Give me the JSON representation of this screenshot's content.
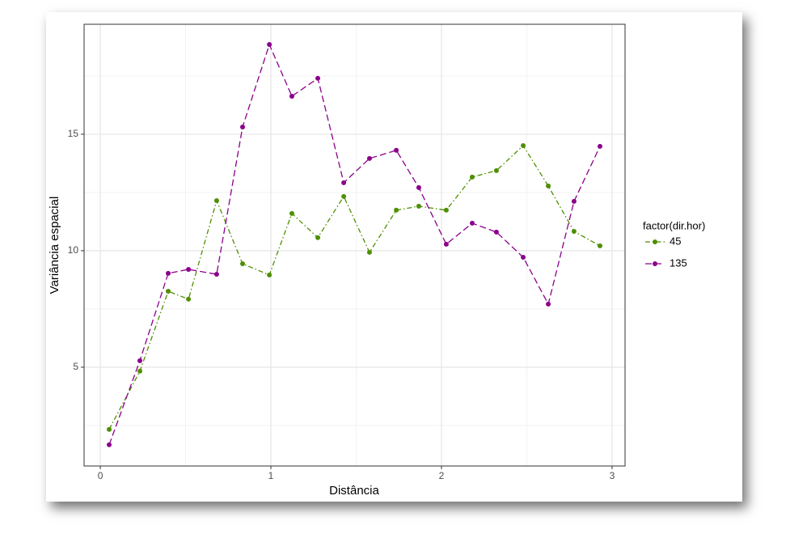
{
  "chart_data": {
    "type": "line",
    "xlabel": "Distância",
    "ylabel": "Variância espacial",
    "legend_title": "factor(dir.hor)",
    "x": [
      0.052,
      0.232,
      0.398,
      0.517,
      0.682,
      0.834,
      0.991,
      1.123,
      1.275,
      1.427,
      1.578,
      1.735,
      1.867,
      2.028,
      2.18,
      2.322,
      2.479,
      2.626,
      2.777,
      2.929
    ],
    "series": [
      {
        "name": "45",
        "color": "#4f8f00",
        "values": [
          2.33,
          4.83,
          8.26,
          7.92,
          12.15,
          9.44,
          8.96,
          11.6,
          10.56,
          12.33,
          9.93,
          11.74,
          11.91,
          11.74,
          13.16,
          13.44,
          14.51,
          12.78,
          10.83,
          10.21
        ]
      },
      {
        "name": "135",
        "color": "#8b008b",
        "values": [
          1.67,
          5.28,
          9.03,
          9.2,
          8.99,
          15.31,
          18.85,
          16.63,
          17.4,
          12.92,
          13.96,
          14.31,
          12.71,
          10.28,
          11.18,
          10.8,
          9.72,
          7.71,
          12.12,
          14.48
        ]
      }
    ],
    "xlim": [
      -0.095,
      3.076
    ],
    "ylim": [
      0.76,
      19.72
    ],
    "xticks": [
      0,
      1,
      2,
      3
    ],
    "yticks": [
      5,
      10,
      15
    ],
    "grid": true
  }
}
